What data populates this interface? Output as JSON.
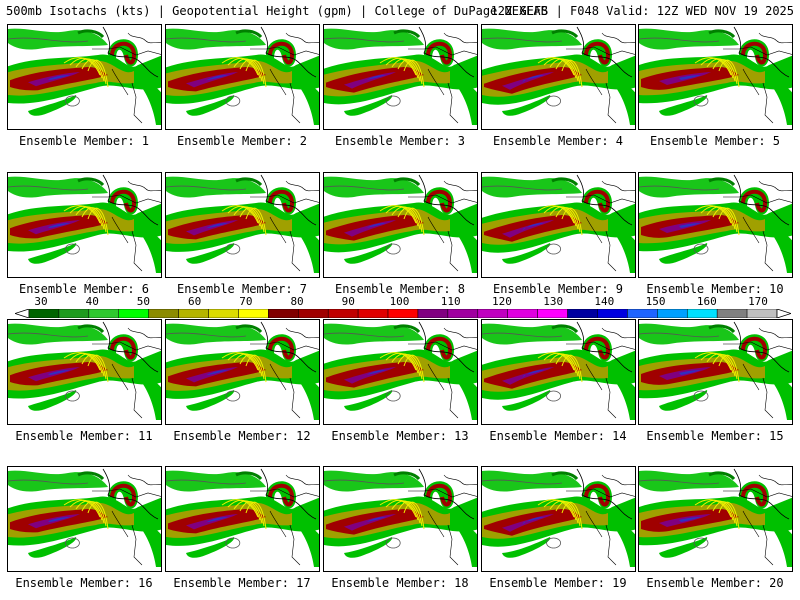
{
  "header": {
    "title_left": "500mb Isotachs (kts) | Geopotential Height (gpm) | College of DuPage NEXLAB",
    "title_right": "12Z GEFS | F048 Valid: 12Z WED NOV 19 2025"
  },
  "members": [
    {
      "label": "Ensemble Member: 1"
    },
    {
      "label": "Ensemble Member: 2"
    },
    {
      "label": "Ensemble Member: 3"
    },
    {
      "label": "Ensemble Member: 4"
    },
    {
      "label": "Ensemble Member: 5"
    },
    {
      "label": "Ensemble Member: 6"
    },
    {
      "label": "Ensemble Member: 7"
    },
    {
      "label": "Ensemble Member: 8"
    },
    {
      "label": "Ensemble Member: 9"
    },
    {
      "label": "Ensemble Member: 10"
    },
    {
      "label": "Ensemble Member: 11"
    },
    {
      "label": "Ensemble Member: 12"
    },
    {
      "label": "Ensemble Member: 13"
    },
    {
      "label": "Ensemble Member: 14"
    },
    {
      "label": "Ensemble Member: 15"
    },
    {
      "label": "Ensemble Member: 16"
    },
    {
      "label": "Ensemble Member: 17"
    },
    {
      "label": "Ensemble Member: 18"
    },
    {
      "label": "Ensemble Member: 19"
    },
    {
      "label": "Ensemble Member: 20"
    }
  ],
  "colorbar": {
    "labels": [
      "30",
      "40",
      "50",
      "60",
      "70",
      "80",
      "90",
      "100",
      "110",
      "120",
      "130",
      "140",
      "150",
      "160",
      "170"
    ],
    "colors": [
      "#006400",
      "#1e9b1e",
      "#2ec82e",
      "#00ff00",
      "#8b8b00",
      "#b4b400",
      "#dcdc00",
      "#ffff00",
      "#800000",
      "#a00000",
      "#c00000",
      "#e00000",
      "#ff0000",
      "#800080",
      "#a000a0",
      "#c000c0",
      "#e000e0",
      "#ff00ff",
      "#0000a0",
      "#0000e0",
      "#1e64ff",
      "#00a0ff",
      "#00e0ff",
      "#808080",
      "#c0c0c0"
    ]
  },
  "map_colors": {
    "coast": "#000000",
    "height_contour": "#555555",
    "isotach_light": "#00c000",
    "isotach_dark": "#008000",
    "isotach_olive": "#a0a000",
    "isotach_yellow": "#f0f000",
    "isotach_red": "#a00000",
    "isotach_purple": "#800080",
    "isotach_blue": "#3030c0"
  }
}
